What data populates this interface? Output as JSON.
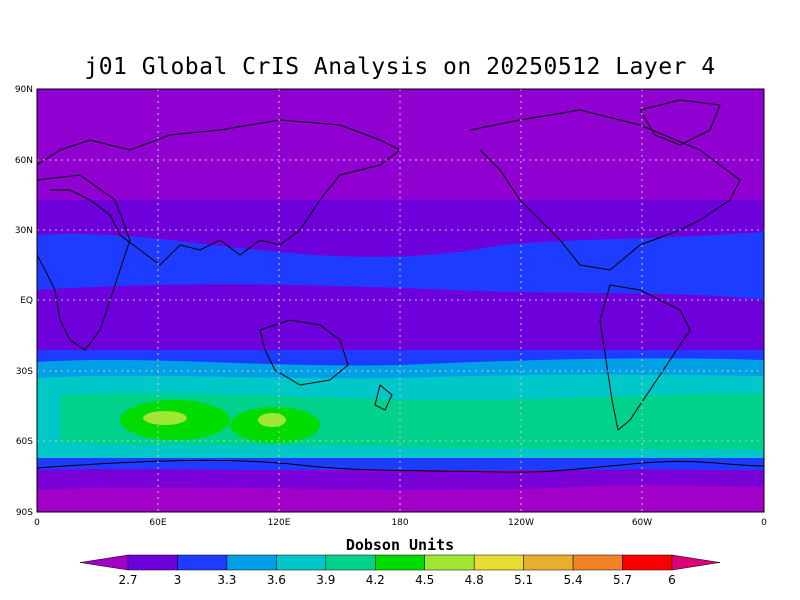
{
  "title": "j01 Global CrIS Analysis on 20250512 Layer 4",
  "map": {
    "lat_labels": [
      "90N",
      "60N",
      "30N",
      "EQ",
      "30S",
      "60S",
      "90S"
    ],
    "lon_labels": [
      "0",
      "60E",
      "120E",
      "180",
      "120W",
      "60W",
      "0"
    ],
    "background_color": "#9000d0",
    "grid": true
  },
  "colorbar": {
    "title": "Dobson Units",
    "labels": [
      "2.7",
      "3",
      "3.3",
      "3.6",
      "3.9",
      "4.2",
      "4.5",
      "4.8",
      "5.1",
      "5.4",
      "5.7",
      "6"
    ],
    "colors": [
      "#a000c8",
      "#6e00dc",
      "#1e3cff",
      "#00a0e6",
      "#00c8c8",
      "#00d28c",
      "#00dc00",
      "#a0e632",
      "#e6dc32",
      "#e6af2d",
      "#f08228",
      "#fa0000",
      "#dc0078"
    ]
  }
}
